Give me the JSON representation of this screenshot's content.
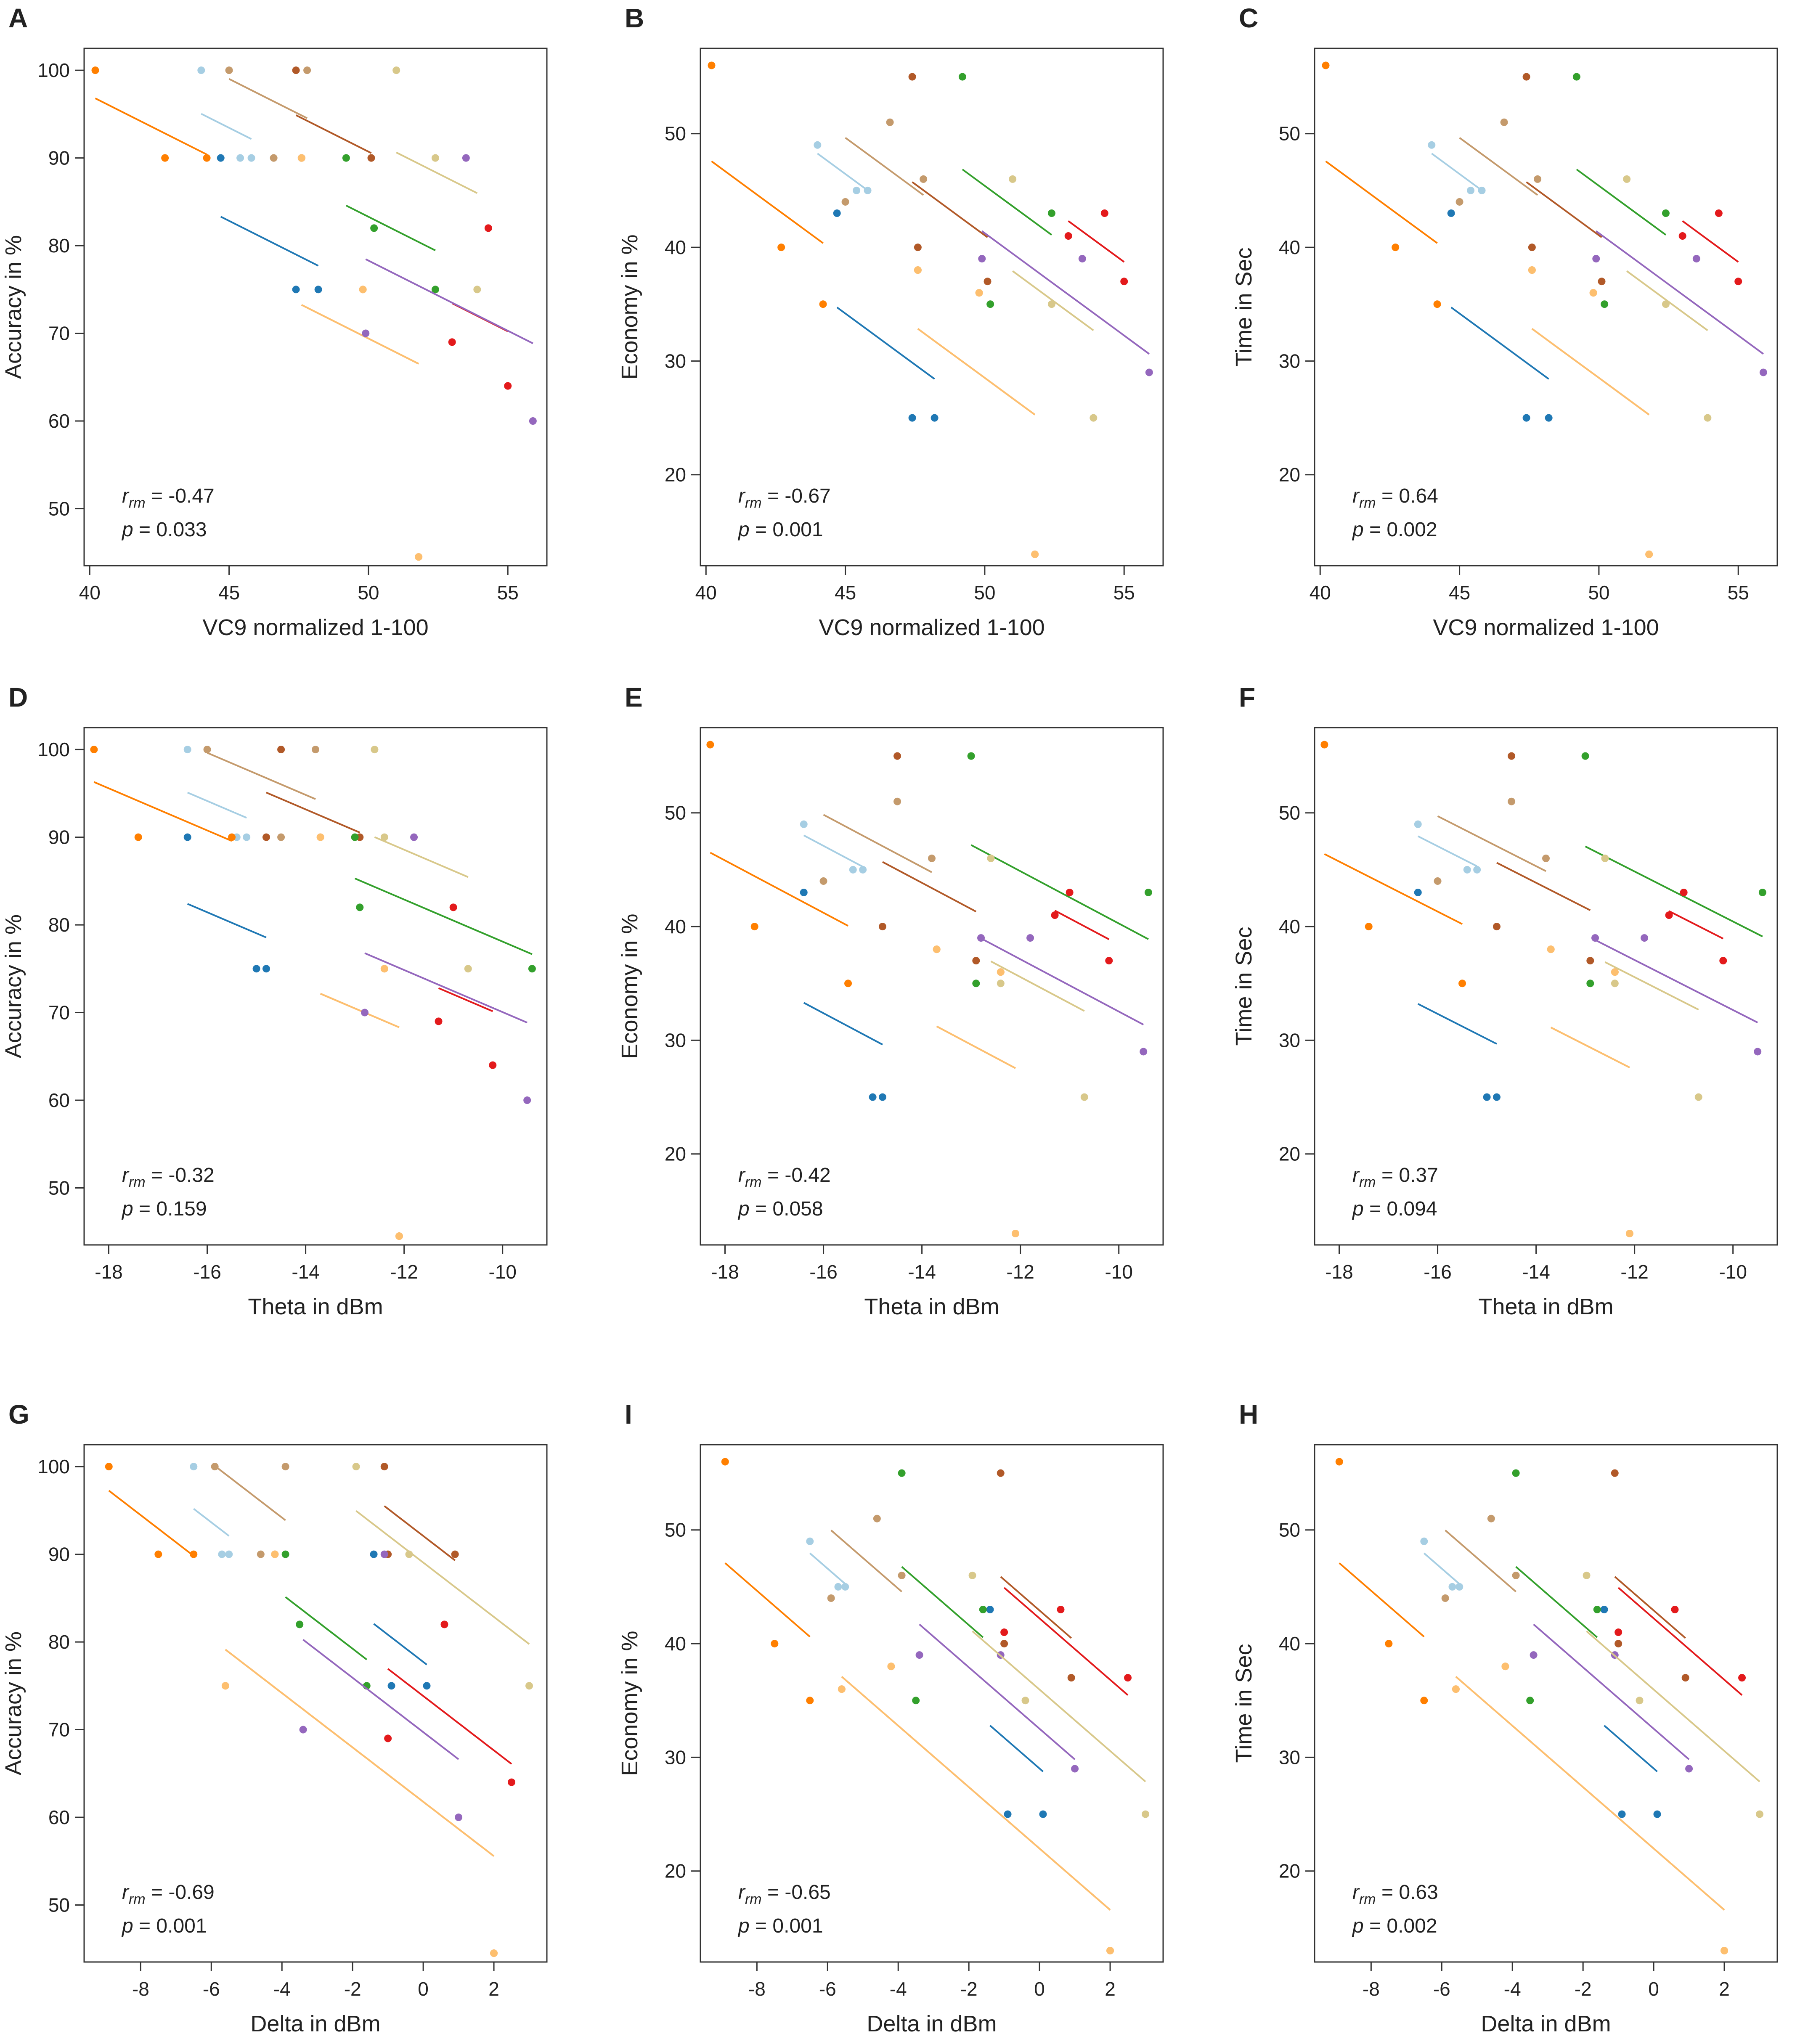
{
  "figure_title": "",
  "chart_data": [
    {
      "panel": "A",
      "type": "scatter",
      "title": "",
      "xlabel": "VC9 normalized 1-100",
      "ylabel": "Accuracy in %",
      "xlim": [
        39.8,
        56.4
      ],
      "ylim": [
        43.5,
        102.5
      ],
      "xticks": [
        40,
        45,
        50,
        55
      ],
      "yticks": [
        50,
        60,
        70,
        80,
        90,
        100
      ],
      "xtick_labels": [
        "40",
        "45",
        "50",
        "55"
      ],
      "ytick_labels": [
        "50",
        "60",
        "70",
        "80",
        "90",
        "100"
      ],
      "annotation": {
        "r_label": "r",
        "r_sub": "rm",
        "r_value": " = -0.47",
        "p_text": "p = 0.033"
      }
    },
    {
      "panel": "B",
      "type": "scatter",
      "title": "",
      "xlabel": "VC9 normalized 1-100",
      "ylabel": "Economy in %",
      "xlim": [
        39.8,
        56.4
      ],
      "ylim": [
        12,
        57.5
      ],
      "xticks": [
        40,
        45,
        50,
        55
      ],
      "yticks": [
        20,
        30,
        40,
        50
      ],
      "xtick_labels": [
        "40",
        "45",
        "50",
        "55"
      ],
      "ytick_labels": [
        "20",
        "30",
        "40",
        "50"
      ],
      "annotation": {
        "r_label": "r",
        "r_sub": "rm",
        "r_value": " = -0.67",
        "p_text": "p = 0.001"
      }
    },
    {
      "panel": "C",
      "type": "scatter",
      "title": "",
      "xlabel": "VC9 normalized 1-100",
      "ylabel": "Time in Sec",
      "xlim": [
        39.8,
        56.4
      ],
      "ylim": [
        12,
        57.5
      ],
      "xticks": [
        40,
        45,
        50,
        55
      ],
      "yticks": [
        20,
        30,
        40,
        50
      ],
      "xtick_labels": [
        "40",
        "45",
        "50",
        "55"
      ],
      "ytick_labels": [
        "20",
        "30",
        "40",
        "50"
      ],
      "annotation": {
        "r_label": "r",
        "r_sub": "rm",
        "r_value": " = 0.64",
        "p_text": "p = 0.002"
      }
    },
    {
      "panel": "D",
      "type": "scatter",
      "title": "",
      "xlabel": "Theta in dBm",
      "ylabel": "Accuracy in %",
      "xlim": [
        -18.5,
        -9.1
      ],
      "ylim": [
        43.5,
        102.5
      ],
      "xticks": [
        -18,
        -16,
        -14,
        -12,
        -10
      ],
      "yticks": [
        50,
        60,
        70,
        80,
        90,
        100
      ],
      "xtick_labels": [
        "-18",
        "-16",
        "-14",
        "-12",
        "-10"
      ],
      "ytick_labels": [
        "50",
        "60",
        "70",
        "80",
        "90",
        "100"
      ],
      "annotation": {
        "r_label": "r",
        "r_sub": "rm",
        "r_value": " = -0.32",
        "p_text": "p = 0.159"
      }
    },
    {
      "panel": "E",
      "type": "scatter",
      "title": "",
      "xlabel": "Theta in dBm",
      "ylabel": "Economy in %",
      "xlim": [
        -18.5,
        -9.1
      ],
      "ylim": [
        12,
        57.5
      ],
      "xticks": [
        -18,
        -16,
        -14,
        -12,
        -10
      ],
      "yticks": [
        20,
        30,
        40,
        50
      ],
      "xtick_labels": [
        "-18",
        "-16",
        "-14",
        "-12",
        "-10"
      ],
      "ytick_labels": [
        "20",
        "30",
        "40",
        "50"
      ],
      "annotation": {
        "r_label": "r",
        "r_sub": "rm",
        "r_value": " = -0.42",
        "p_text": "p = 0.058"
      }
    },
    {
      "panel": "F",
      "type": "scatter",
      "title": "",
      "xlabel": "Theta in dBm",
      "ylabel": "Time in Sec",
      "xlim": [
        -18.5,
        -9.1
      ],
      "ylim": [
        12,
        57.5
      ],
      "xticks": [
        -18,
        -16,
        -14,
        -12,
        -10
      ],
      "yticks": [
        20,
        30,
        40,
        50
      ],
      "xtick_labels": [
        "-18",
        "-16",
        "-14",
        "-12",
        "-10"
      ],
      "ytick_labels": [
        "20",
        "30",
        "40",
        "50"
      ],
      "annotation": {
        "r_label": "r",
        "r_sub": "rm",
        "r_value": " = 0.37",
        "p_text": "p = 0.094"
      }
    },
    {
      "panel": "G",
      "type": "scatter",
      "title": "",
      "xlabel": "Delta in dBm",
      "ylabel": "Accuracy in %",
      "xlim": [
        -9.6,
        3.5
      ],
      "ylim": [
        43.5,
        102.5
      ],
      "xticks": [
        -8,
        -6,
        -4,
        -2,
        0,
        2
      ],
      "yticks": [
        50,
        60,
        70,
        80,
        90,
        100
      ],
      "xtick_labels": [
        "-8",
        "-6",
        "-4",
        "-2",
        "0",
        "2"
      ],
      "ytick_labels": [
        "50",
        "60",
        "70",
        "80",
        "90",
        "100"
      ],
      "annotation": {
        "r_label": "r",
        "r_sub": "rm",
        "r_value": " = -0.69",
        "p_text": "p = 0.001"
      }
    },
    {
      "panel": "I",
      "type": "scatter",
      "title": "",
      "xlabel": "Delta in dBm",
      "ylabel": "Economy in %",
      "xlim": [
        -9.6,
        3.5
      ],
      "ylim": [
        12,
        57.5
      ],
      "xticks": [
        -8,
        -6,
        -4,
        -2,
        0,
        2
      ],
      "yticks": [
        20,
        30,
        40,
        50
      ],
      "xtick_labels": [
        "-8",
        "-6",
        "-4",
        "-2",
        "0",
        "2"
      ],
      "ytick_labels": [
        "20",
        "30",
        "40",
        "50"
      ],
      "annotation": {
        "r_label": "r",
        "r_sub": "rm",
        "r_value": " = -0.65",
        "p_text": "p = 0.001"
      }
    },
    {
      "panel": "H",
      "type": "scatter",
      "title": "",
      "xlabel": "Delta in dBm",
      "ylabel": "Time in Sec",
      "xlim": [
        -9.6,
        3.5
      ],
      "ylim": [
        12,
        57.5
      ],
      "xticks": [
        -8,
        -6,
        -4,
        -2,
        0,
        2
      ],
      "yticks": [
        20,
        30,
        40,
        50
      ],
      "xtick_labels": [
        "-8",
        "-6",
        "-4",
        "-2",
        "0",
        "2"
      ],
      "ytick_labels": [
        "20",
        "30",
        "40",
        "50"
      ],
      "annotation": {
        "r_label": "r",
        "r_sub": "rm",
        "r_value": " = 0.63",
        "p_text": "p = 0.002"
      }
    }
  ],
  "subject_colors": [
    "#1f78b4",
    "#a6cee3",
    "#ff7f00",
    "#e8a25d",
    "#b15928",
    "#c49a6c",
    "#33a02c",
    "#fdbf6f",
    "#e31a1c",
    "#9467bd",
    "#d8c88a"
  ],
  "series": {
    "vc9": [
      [
        44.7,
        47.4,
        48.2
      ],
      [
        44.0,
        45.4,
        45.8
      ],
      [
        40.2,
        42.7,
        44.2
      ],
      [
        47.6,
        49.8,
        51.8
      ],
      [
        47.4,
        47.6,
        50.1
      ],
      [
        45.0,
        46.6,
        47.8
      ],
      [
        49.2,
        50.2,
        52.4
      ],
      [
        47.6,
        49.8,
        51.8
      ],
      [
        53.0,
        54.3,
        55.0
      ],
      [
        49.9,
        53.5,
        55.9
      ],
      [
        51.0,
        52.4,
        53.9
      ]
    ],
    "theta": [
      [
        -16.4,
        -15.0,
        -14.8
      ],
      [
        -16.4,
        -15.4,
        -15.2
      ],
      [
        -18.3,
        -17.4,
        -15.5
      ],
      [
        -13.7,
        -12.4,
        -12.1
      ],
      [
        -14.5,
        -14.8,
        -12.9
      ],
      [
        -16.0,
        -14.5,
        -13.8
      ],
      [
        -13.0,
        -12.9,
        -9.4
      ],
      [
        -13.7,
        -12.4,
        -12.1
      ],
      [
        -11.3,
        -11.0,
        -10.2
      ],
      [
        -12.8,
        -11.8,
        -9.5
      ],
      [
        -12.6,
        -12.4,
        -10.7
      ]
    ],
    "delta": [
      [
        -1.4,
        -0.9,
        0.1
      ],
      [
        -6.5,
        -5.7,
        -5.5
      ],
      [
        -8.9,
        -7.5,
        -6.5
      ],
      [
        -4.2,
        -5.6,
        2.0
      ],
      [
        -1.1,
        -1.0,
        0.9
      ],
      [
        -5.9,
        -4.6,
        -3.9
      ],
      [
        -3.9,
        -3.5,
        -1.6
      ],
      [
        -4.2,
        -5.6,
        2.0
      ],
      [
        -1.0,
        0.6,
        2.5
      ],
      [
        -3.4,
        -1.1,
        1.0
      ],
      [
        -1.9,
        -0.4,
        3.0
      ]
    ],
    "accuracy": [
      [
        90,
        75,
        75
      ],
      [
        100,
        90,
        90
      ],
      [
        100,
        90,
        90
      ],
      [
        90,
        75,
        44.5
      ],
      [
        100,
        90,
        90
      ],
      [
        100,
        90,
        100
      ],
      [
        90,
        82,
        75
      ],
      [
        90,
        75,
        44.5
      ],
      [
        69,
        82,
        64
      ],
      [
        70,
        90,
        60
      ],
      [
        100,
        90,
        75
      ]
    ],
    "economy": [
      [
        43,
        25,
        25
      ],
      [
        49,
        45,
        45
      ],
      [
        56,
        40,
        35
      ],
      [
        38,
        36,
        13
      ],
      [
        55,
        40,
        37
      ],
      [
        44,
        51,
        46
      ],
      [
        55,
        35,
        43
      ],
      [
        38,
        36,
        13
      ],
      [
        41,
        43,
        37
      ],
      [
        39,
        39,
        29
      ],
      [
        46,
        35,
        25
      ]
    ],
    "time": [
      [
        43,
        25,
        25
      ],
      [
        49,
        45,
        45
      ],
      [
        56,
        40,
        35
      ],
      [
        38,
        36,
        13
      ],
      [
        55,
        40,
        37
      ],
      [
        44,
        51,
        46
      ],
      [
        55,
        35,
        43
      ],
      [
        38,
        36,
        13
      ],
      [
        41,
        43,
        37
      ],
      [
        39,
        39,
        29
      ],
      [
        46,
        35,
        25
      ]
    ]
  },
  "fit_slopes": {
    "A": -1.6,
    "B": -1.8,
    "C": -1.8,
    "D": -2.4,
    "E": -2.3,
    "F": -2.2,
    "G": -3.1,
    "I": -2.7,
    "H": -2.7
  }
}
